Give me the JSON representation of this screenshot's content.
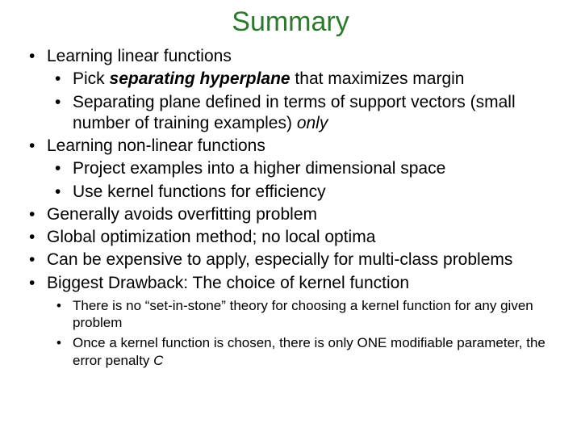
{
  "colors": {
    "title": "#2a7a2a",
    "text": "#000000",
    "background": "#ffffff"
  },
  "title": "Summary",
  "bullets": [
    {
      "text": "Learning linear functions",
      "sub": [
        {
          "pre": "Pick ",
          "em": "separating hyperplane",
          "post": " that maximizes margin"
        },
        {
          "pre": "Separating plane defined in terms of support vectors (small number of training examples) ",
          "it": "only",
          "post": ""
        }
      ]
    },
    {
      "text": "Learning non-linear functions",
      "sub": [
        {
          "pre": "Project examples into a higher dimensional space"
        },
        {
          "pre": "Use kernel functions for efficiency"
        }
      ]
    },
    {
      "text": "Generally avoids overfitting problem"
    },
    {
      "text": "Global optimization method; no local optima"
    },
    {
      "text": "Can be expensive to apply, especially for multi-class problems"
    },
    {
      "text": "Biggest Drawback: The choice of kernel function",
      "subSmall": [
        {
          "pre": "There is no “set-in-stone” theory for choosing a kernel function for any given problem"
        },
        {
          "pre": "Once a kernel function is chosen, there is only ONE modifiable parameter, the error penalty ",
          "it": "C",
          "post": ""
        }
      ]
    }
  ]
}
